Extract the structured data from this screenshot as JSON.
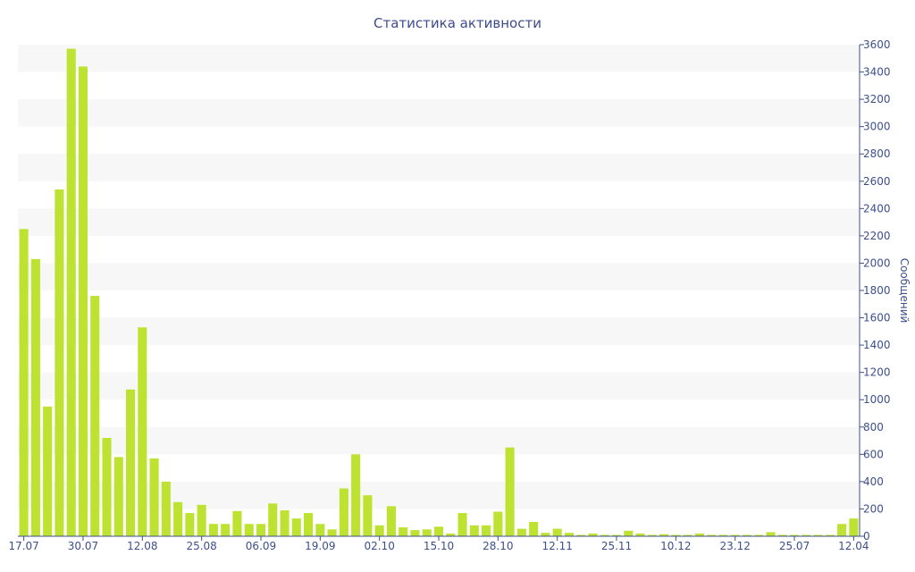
{
  "chart_data": {
    "type": "bar",
    "title": "Статистика активности",
    "y_label": "Сообщений",
    "categories": [
      "17.07",
      null,
      null,
      null,
      null,
      "30.07",
      null,
      null,
      null,
      null,
      "12.08",
      null,
      null,
      null,
      null,
      "25.08",
      null,
      null,
      null,
      null,
      "06.09",
      null,
      null,
      null,
      null,
      "19.09",
      null,
      null,
      null,
      null,
      "02.10",
      null,
      null,
      null,
      null,
      "15.10",
      null,
      null,
      null,
      null,
      "28.10",
      null,
      null,
      null,
      null,
      "12.11",
      null,
      null,
      null,
      null,
      "25.11",
      null,
      null,
      null,
      null,
      "10.12",
      null,
      null,
      null,
      null,
      "23.12",
      null,
      null,
      null,
      null,
      "25.07",
      null,
      null,
      null,
      null,
      "12.04"
    ],
    "values": [
      2250,
      2030,
      950,
      2540,
      3570,
      3440,
      1760,
      720,
      580,
      1075,
      1530,
      570,
      400,
      250,
      170,
      230,
      90,
      90,
      185,
      90,
      90,
      240,
      190,
      130,
      170,
      90,
      50,
      350,
      600,
      300,
      80,
      220,
      65,
      45,
      50,
      70,
      20,
      170,
      80,
      80,
      180,
      650,
      55,
      105,
      25,
      55,
      25,
      10,
      20,
      10,
      10,
      40,
      20,
      10,
      15,
      10,
      10,
      20,
      10,
      10,
      10,
      10,
      10,
      30,
      10,
      10,
      10,
      10,
      10,
      90,
      130
    ],
    "color": "#bde231",
    "ylim": [
      0,
      3600
    ],
    "yticks": [
      0,
      200,
      400,
      600,
      800,
      1000,
      1200,
      1400,
      1600,
      1800,
      2000,
      2200,
      2400,
      2600,
      2800,
      3000,
      3200,
      3400,
      3600
    ],
    "grid": "bands",
    "y_axis_side": "right"
  }
}
